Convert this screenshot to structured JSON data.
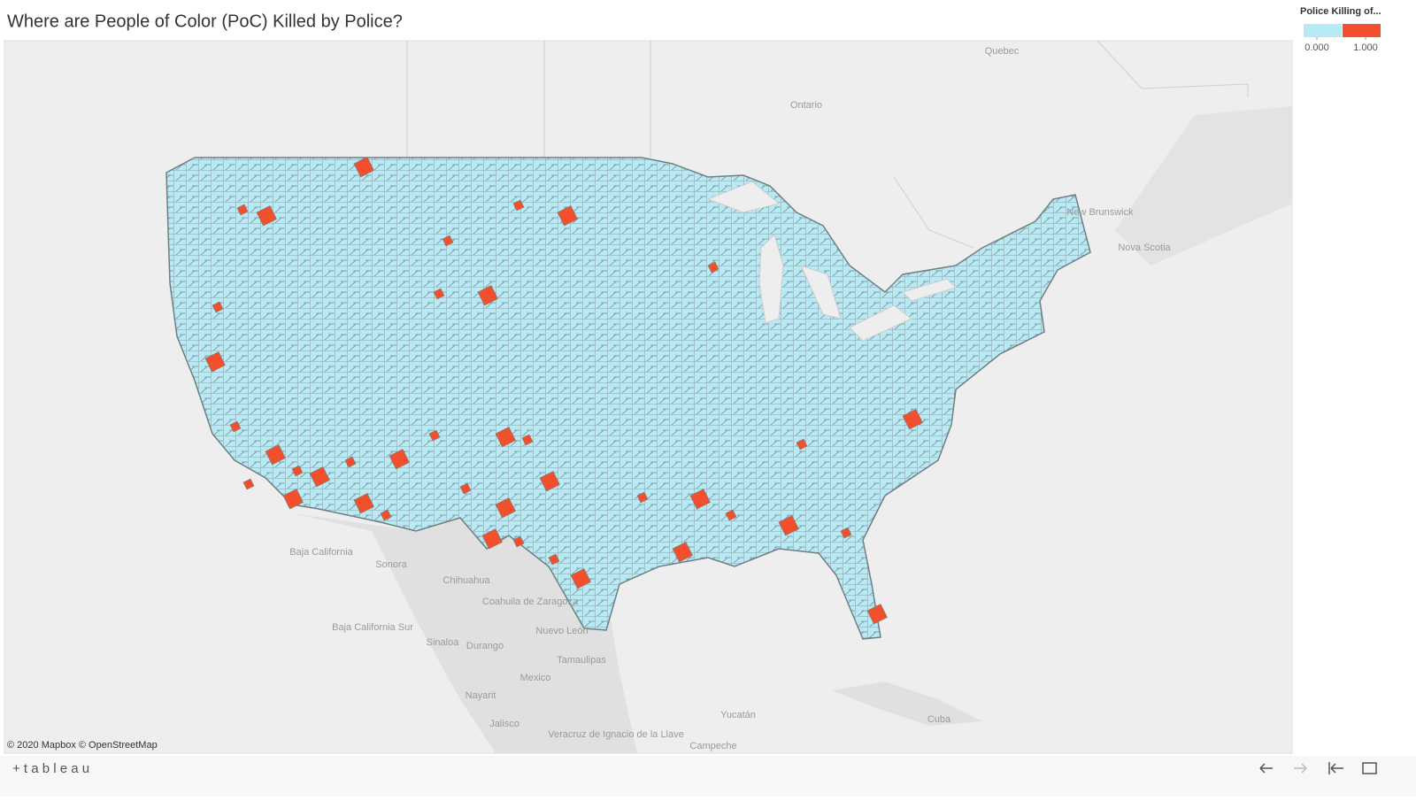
{
  "header": {
    "title": "Where are People of Color (PoC) Killed by Police?"
  },
  "legend": {
    "title": "Police Killing of...",
    "ticks": [
      {
        "value": 0,
        "label": "0.000"
      },
      {
        "value": 1,
        "label": "1.000"
      }
    ],
    "colors": [
      "#b8eaf6",
      "#f2502d"
    ]
  },
  "map": {
    "labels": [
      "Quebec",
      "Ontario",
      "New Brunswick",
      "Nova Scotia",
      "Baja California",
      "Sonora",
      "Chihuahua",
      "Coahuila de Zaragoza",
      "Nuevo León",
      "Tamaulipas",
      "Mexico",
      "Sinaloa",
      "Durango",
      "Nayarit",
      "Jalisco",
      "Baja California Sur",
      "Veracruz de Ignacio de la Llave",
      "Yucatán",
      "Campeche",
      "Cuba"
    ],
    "attribution": "© 2020 Mapbox © OpenStreetMap"
  },
  "footer": {
    "logo": "+ t a b l e a u"
  }
}
